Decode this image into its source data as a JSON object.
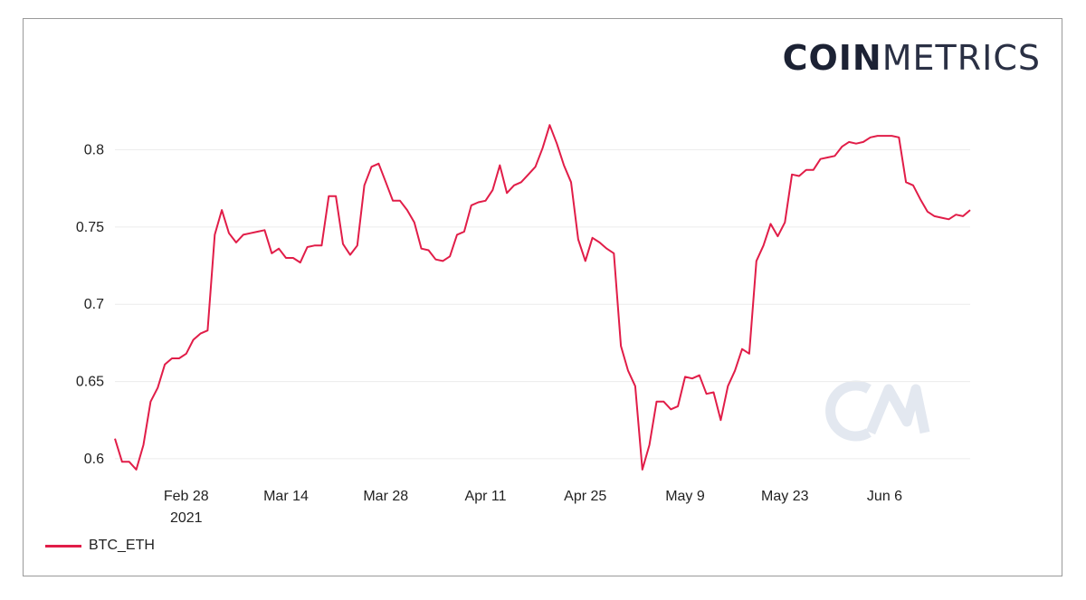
{
  "brand": {
    "bold": "COIN",
    "light": "METRICS"
  },
  "colors": {
    "line": "#e11d48",
    "grid": "#ececec",
    "watermark": "#e3e8f0"
  },
  "chart_data": {
    "type": "line",
    "title": "",
    "xlabel": "",
    "ylabel": "",
    "ylim": [
      0.59,
      0.8325
    ],
    "xlim": [
      "2021-02-18",
      "2021-06-18"
    ],
    "yticks": [
      {
        "label": "0.6",
        "value": 0.6
      },
      {
        "label": "0.65",
        "value": 0.65
      },
      {
        "label": "0.7",
        "value": 0.7
      },
      {
        "label": "0.75",
        "value": 0.75
      },
      {
        "label": "0.8",
        "value": 0.8
      }
    ],
    "xticks": [
      {
        "label": "Feb 28",
        "sublabel": "2021",
        "date": "2021-02-28"
      },
      {
        "label": "Mar 14",
        "sublabel": "",
        "date": "2021-03-14"
      },
      {
        "label": "Mar 28",
        "sublabel": "",
        "date": "2021-03-28"
      },
      {
        "label": "Apr 11",
        "sublabel": "",
        "date": "2021-04-11"
      },
      {
        "label": "Apr 25",
        "sublabel": "",
        "date": "2021-04-25"
      },
      {
        "label": "May 9",
        "sublabel": "",
        "date": "2021-05-09"
      },
      {
        "label": "May 23",
        "sublabel": "",
        "date": "2021-05-23"
      },
      {
        "label": "Jun 6",
        "sublabel": "",
        "date": "2021-06-06"
      }
    ],
    "grid": true,
    "legend_position": "bottom-left",
    "series": [
      {
        "name": "BTC_ETH",
        "color": "#e11d48",
        "points": [
          [
            "2021-02-18",
            0.613
          ],
          [
            "2021-02-19",
            0.598
          ],
          [
            "2021-02-20",
            0.598
          ],
          [
            "2021-02-21",
            0.593
          ],
          [
            "2021-02-22",
            0.609
          ],
          [
            "2021-02-23",
            0.637
          ],
          [
            "2021-02-24",
            0.646
          ],
          [
            "2021-02-25",
            0.661
          ],
          [
            "2021-02-26",
            0.665
          ],
          [
            "2021-02-27",
            0.665
          ],
          [
            "2021-02-28",
            0.668
          ],
          [
            "2021-03-01",
            0.677
          ],
          [
            "2021-03-02",
            0.681
          ],
          [
            "2021-03-03",
            0.683
          ],
          [
            "2021-03-04",
            0.745
          ],
          [
            "2021-03-05",
            0.761
          ],
          [
            "2021-03-06",
            0.746
          ],
          [
            "2021-03-07",
            0.74
          ],
          [
            "2021-03-08",
            0.745
          ],
          [
            "2021-03-09",
            0.746
          ],
          [
            "2021-03-10",
            0.747
          ],
          [
            "2021-03-11",
            0.748
          ],
          [
            "2021-03-12",
            0.733
          ],
          [
            "2021-03-13",
            0.736
          ],
          [
            "2021-03-14",
            0.73
          ],
          [
            "2021-03-15",
            0.73
          ],
          [
            "2021-03-16",
            0.727
          ],
          [
            "2021-03-17",
            0.737
          ],
          [
            "2021-03-18",
            0.738
          ],
          [
            "2021-03-19",
            0.738
          ],
          [
            "2021-03-20",
            0.77
          ],
          [
            "2021-03-21",
            0.77
          ],
          [
            "2021-03-22",
            0.739
          ],
          [
            "2021-03-23",
            0.732
          ],
          [
            "2021-03-24",
            0.738
          ],
          [
            "2021-03-25",
            0.777
          ],
          [
            "2021-03-26",
            0.789
          ],
          [
            "2021-03-27",
            0.791
          ],
          [
            "2021-03-28",
            0.779
          ],
          [
            "2021-03-29",
            0.767
          ],
          [
            "2021-03-30",
            0.767
          ],
          [
            "2021-03-31",
            0.761
          ],
          [
            "2021-04-01",
            0.753
          ],
          [
            "2021-04-02",
            0.736
          ],
          [
            "2021-04-03",
            0.735
          ],
          [
            "2021-04-04",
            0.729
          ],
          [
            "2021-04-05",
            0.728
          ],
          [
            "2021-04-06",
            0.731
          ],
          [
            "2021-04-07",
            0.745
          ],
          [
            "2021-04-08",
            0.747
          ],
          [
            "2021-04-09",
            0.764
          ],
          [
            "2021-04-10",
            0.766
          ],
          [
            "2021-04-11",
            0.767
          ],
          [
            "2021-04-12",
            0.774
          ],
          [
            "2021-04-13",
            0.79
          ],
          [
            "2021-04-14",
            0.772
          ],
          [
            "2021-04-15",
            0.777
          ],
          [
            "2021-04-16",
            0.779
          ],
          [
            "2021-04-17",
            0.784
          ],
          [
            "2021-04-18",
            0.789
          ],
          [
            "2021-04-19",
            0.801
          ],
          [
            "2021-04-20",
            0.816
          ],
          [
            "2021-04-21",
            0.804
          ],
          [
            "2021-04-22",
            0.79
          ],
          [
            "2021-04-23",
            0.779
          ],
          [
            "2021-04-24",
            0.742
          ],
          [
            "2021-04-25",
            0.728
          ],
          [
            "2021-04-26",
            0.743
          ],
          [
            "2021-04-27",
            0.74
          ],
          [
            "2021-04-28",
            0.736
          ],
          [
            "2021-04-29",
            0.733
          ],
          [
            "2021-04-30",
            0.673
          ],
          [
            "2021-05-01",
            0.657
          ],
          [
            "2021-05-02",
            0.647
          ],
          [
            "2021-05-03",
            0.593
          ],
          [
            "2021-05-04",
            0.609
          ],
          [
            "2021-05-05",
            0.637
          ],
          [
            "2021-05-06",
            0.637
          ],
          [
            "2021-05-07",
            0.632
          ],
          [
            "2021-05-08",
            0.634
          ],
          [
            "2021-05-09",
            0.653
          ],
          [
            "2021-05-10",
            0.652
          ],
          [
            "2021-05-11",
            0.654
          ],
          [
            "2021-05-12",
            0.642
          ],
          [
            "2021-05-13",
            0.643
          ],
          [
            "2021-05-14",
            0.625
          ],
          [
            "2021-05-15",
            0.647
          ],
          [
            "2021-05-16",
            0.657
          ],
          [
            "2021-05-17",
            0.671
          ],
          [
            "2021-05-18",
            0.668
          ],
          [
            "2021-05-19",
            0.728
          ],
          [
            "2021-05-20",
            0.738
          ],
          [
            "2021-05-21",
            0.752
          ],
          [
            "2021-05-22",
            0.744
          ],
          [
            "2021-05-23",
            0.753
          ],
          [
            "2021-05-24",
            0.784
          ],
          [
            "2021-05-25",
            0.783
          ],
          [
            "2021-05-26",
            0.787
          ],
          [
            "2021-05-27",
            0.787
          ],
          [
            "2021-05-28",
            0.794
          ],
          [
            "2021-05-29",
            0.795
          ],
          [
            "2021-05-30",
            0.796
          ],
          [
            "2021-05-31",
            0.802
          ],
          [
            "2021-06-01",
            0.805
          ],
          [
            "2021-06-02",
            0.804
          ],
          [
            "2021-06-03",
            0.805
          ],
          [
            "2021-06-04",
            0.808
          ],
          [
            "2021-06-05",
            0.809
          ],
          [
            "2021-06-06",
            0.809
          ],
          [
            "2021-06-07",
            0.809
          ],
          [
            "2021-06-08",
            0.808
          ],
          [
            "2021-06-09",
            0.779
          ],
          [
            "2021-06-10",
            0.777
          ],
          [
            "2021-06-11",
            0.768
          ],
          [
            "2021-06-12",
            0.76
          ],
          [
            "2021-06-13",
            0.757
          ],
          [
            "2021-06-14",
            0.756
          ],
          [
            "2021-06-15",
            0.755
          ],
          [
            "2021-06-16",
            0.758
          ],
          [
            "2021-06-17",
            0.757
          ],
          [
            "2021-06-18",
            0.761
          ]
        ]
      }
    ]
  }
}
